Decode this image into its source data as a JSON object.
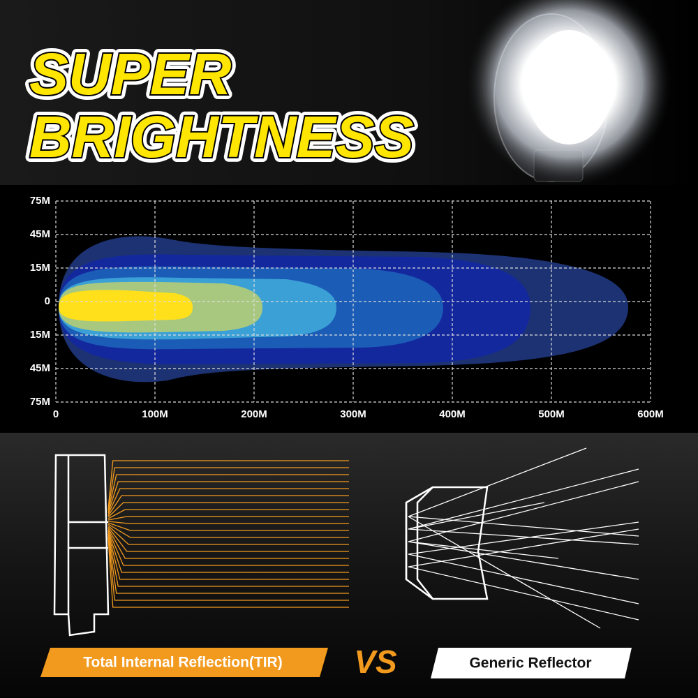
{
  "header": {
    "title_lines": [
      "SUPER",
      "BRIGHTNESS"
    ]
  },
  "beam_chart": {
    "yticks": [
      {
        "value": 75,
        "label": "75M"
      },
      {
        "value": 45,
        "label": "45M"
      },
      {
        "value": 15,
        "label": "15M"
      },
      0,
      {
        "value": -15,
        "label": "15M"
      },
      {
        "value": -45,
        "label": "45M"
      },
      {
        "value": -75,
        "label": "75M"
      }
    ],
    "xticks": [
      0,
      {
        "value": 100,
        "label": "100M"
      },
      {
        "value": 200,
        "label": "200M"
      },
      {
        "value": 300,
        "label": "300M"
      },
      {
        "value": 400,
        "label": "400M"
      },
      {
        "value": 500,
        "label": "500M"
      },
      {
        "value": 600,
        "label": "600M"
      }
    ]
  },
  "comparison": {
    "left_label": "Total Internal Reflection(TIR)",
    "vs": "VS",
    "right_label": "Generic Reflector"
  }
}
